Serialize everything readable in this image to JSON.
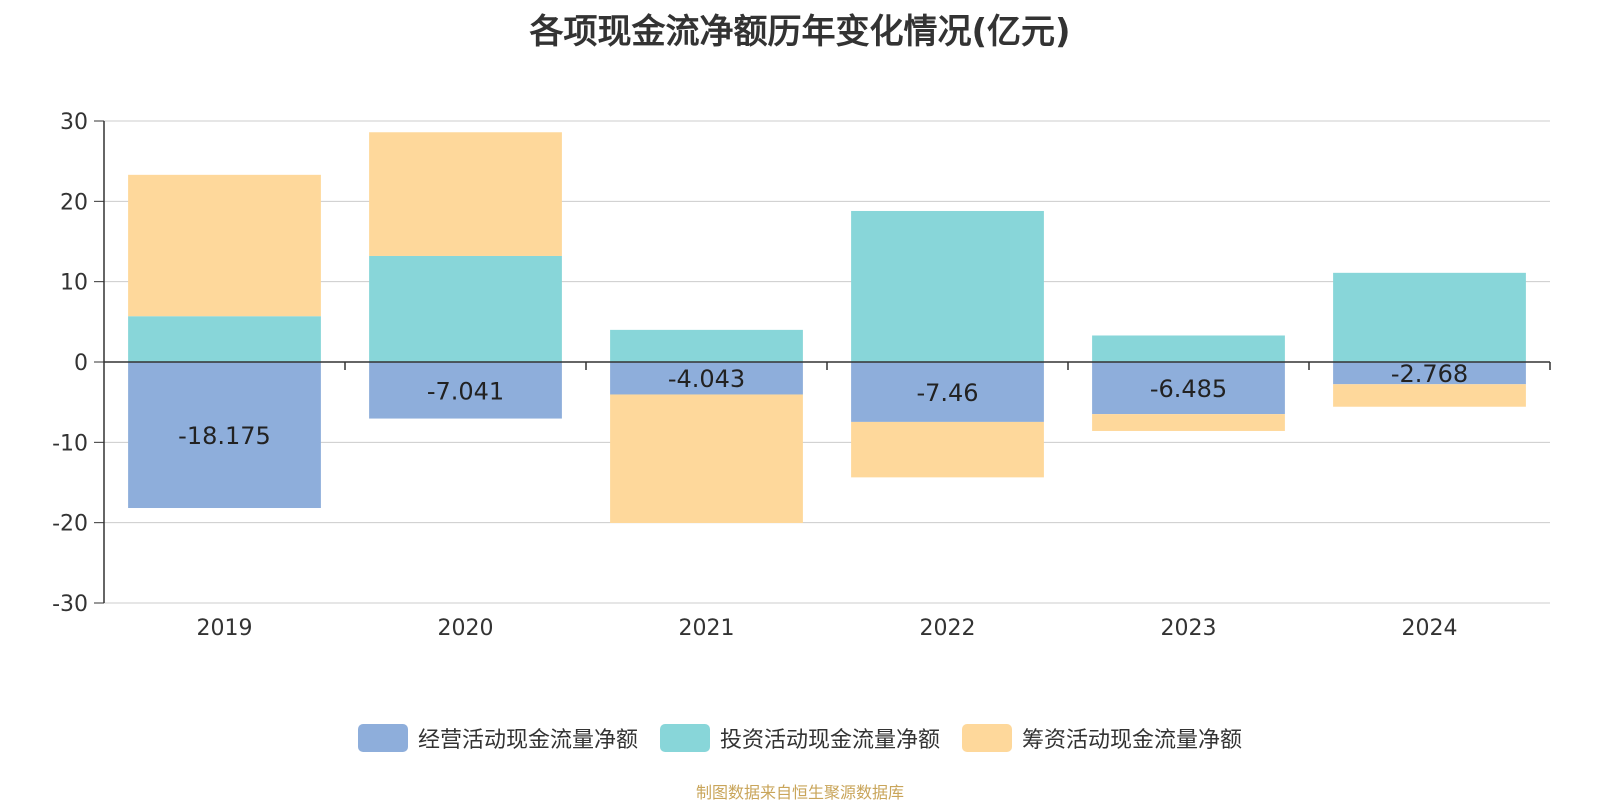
{
  "chart_data": {
    "type": "bar",
    "stacked": true,
    "title": "各项现金流净额历年变化情况(亿元)",
    "categories": [
      "2019",
      "2020",
      "2021",
      "2022",
      "2023",
      "2024"
    ],
    "ylim": [
      -30,
      30
    ],
    "yticks": [
      30,
      20,
      10,
      0,
      -10,
      -20,
      -30
    ],
    "grid": true,
    "legend_position": "bottom",
    "series": [
      {
        "name": "经营活动现金流量净额",
        "color": "#8eaedb",
        "values": [
          -18.175,
          -7.041,
          -4.043,
          -7.46,
          -6.485,
          -2.768
        ],
        "labels": [
          "-18.175",
          "-7.041",
          "-4.043",
          "-7.46",
          "-6.485",
          "-2.768"
        ]
      },
      {
        "name": "投资活动现金流量净额",
        "color": "#88d6d9",
        "values": [
          5.7,
          13.2,
          4.0,
          18.8,
          3.3,
          11.1
        ]
      },
      {
        "name": "筹资活动现金流量净额",
        "color": "#fed89b",
        "values": [
          17.6,
          15.4,
          -16.0,
          -6.9,
          -2.1,
          -2.8
        ]
      }
    ]
  },
  "source": "制图数据来自恒生聚源数据库"
}
